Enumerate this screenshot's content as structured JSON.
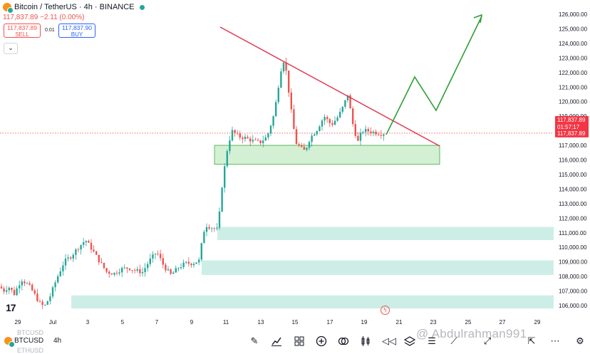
{
  "header": {
    "title": "Bitcoin / TetherUS · 4h · BINANCE",
    "change": "117,837.89  −2.11 (0.00%)",
    "sell_price": "117,837.89",
    "sell_label": "SELL",
    "spread": "0.01",
    "buy_price": "117,837.90",
    "buy_label": "BUY"
  },
  "price_scale": [
    "126,000.00",
    "125,000.00",
    "124,000.00",
    "123,000.00",
    "122,000.00",
    "121,000.00",
    "120,000.00",
    "119,000.00",
    "118,000.00",
    "117,000.00",
    "116,000.00",
    "115,000.00",
    "114,000.00",
    "113,000.00",
    "112,000.00",
    "111,000.00",
    "110,000.00",
    "109,000.00",
    "108,000.00",
    "107,000.00",
    "106,000.00"
  ],
  "current_price_tag": {
    "price": "117,837.89",
    "countdown": "01:57:17",
    "price2": "117,837.89",
    "color": "#f23645"
  },
  "time_axis": [
    "29",
    "Jul",
    "3",
    "5",
    "7",
    "9",
    "11",
    "13",
    "15",
    "17",
    "19",
    "21",
    "23",
    "25",
    "27",
    "29"
  ],
  "bottom_bar": {
    "symbol": "BTCUSD",
    "symbol_ghost": "BTCUSD",
    "symbol_ghost2": "ETHUSD",
    "timeframe": "4h",
    "tools": [
      "pen-icon",
      "indicators-icon",
      "layouts-icon",
      "add-icon",
      "compare-icon",
      "replay-icon",
      "candles-icon",
      "rewind-icon",
      "layers-icon",
      "objects-icon",
      "draw-icon",
      "fullscreen-icon",
      "more-icon"
    ]
  },
  "watermark": "@ Abdulrahman991",
  "colors": {
    "up": "#26a69a",
    "down": "#ef5350",
    "zone": "#cdeee6",
    "box": "#d4f0d4",
    "trendline": "#e0334d",
    "projection": "#2e9e35"
  },
  "chart_data": {
    "type": "candlestick",
    "symbol": "BTCUSDT",
    "interval": "4h",
    "y_range": [
      105500,
      126300
    ],
    "x_axis_labels": [
      "29",
      "Jul",
      "3",
      "5",
      "7",
      "9",
      "11",
      "13",
      "15",
      "17",
      "19",
      "21",
      "23",
      "25",
      "27",
      "29"
    ],
    "current_price": 117837.89,
    "candles_summary": [
      {
        "period": "Jun 29 - Jul 1",
        "range": [
          105500,
          107300
        ]
      },
      {
        "period": "Jul 2 - Jul 8",
        "range": [
          107500,
          110600
        ]
      },
      {
        "period": "Jul 9 - Jul 11",
        "range": [
          108500,
          118800
        ]
      },
      {
        "period": "Jul 12 - Jul 14",
        "range": [
          116800,
          123200
        ]
      },
      {
        "period": "Jul 15 - Jul 20",
        "range": [
          115700,
          120800
        ]
      }
    ],
    "annotations": {
      "descending_trendline": [
        {
          "date": "Jul 11",
          "price": 124900
        },
        {
          "date": "Jul 23",
          "price": 117000
        }
      ],
      "support_box": {
        "from": "Jul 10",
        "to": "Jul 23",
        "price_low": 115700,
        "price_high": 117000
      },
      "demand_zones": [
        [
          110500,
          111400
        ],
        [
          108100,
          109100
        ],
        [
          105800,
          106700
        ]
      ],
      "projection_path": [
        {
          "date": "Jul 20",
          "price": 117700
        },
        {
          "date": "Jul 21",
          "price": 122200
        },
        {
          "date": "Jul 22",
          "price": 119500
        },
        {
          "date": "Jul 25",
          "price": 125800
        }
      ]
    }
  }
}
